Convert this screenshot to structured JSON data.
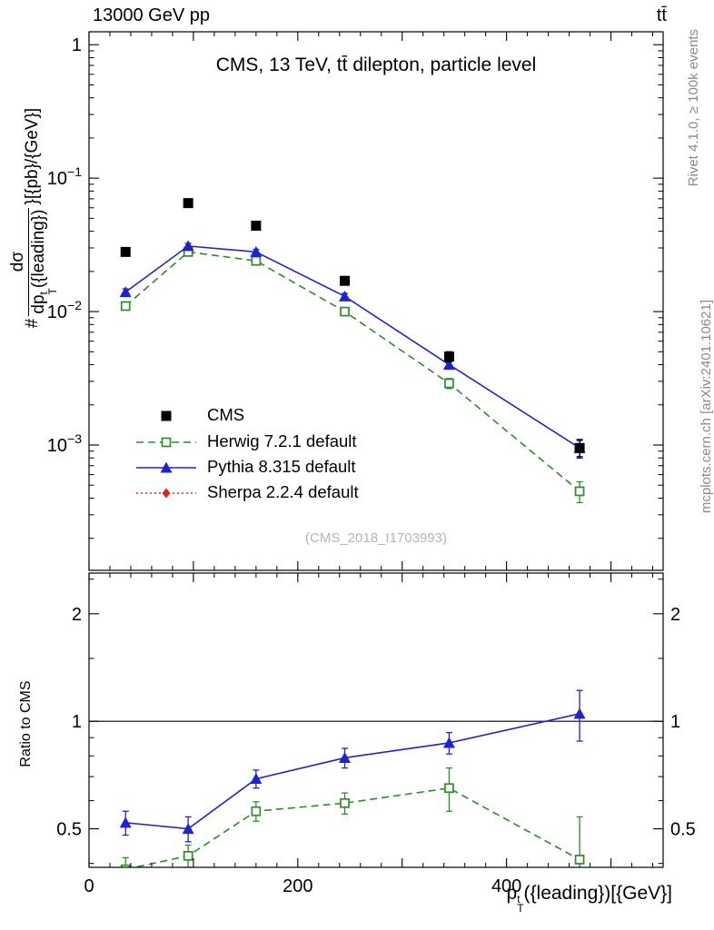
{
  "header": {
    "left_title": "13000 GeV pp",
    "right_title": "tt̄"
  },
  "side_notes": {
    "top": "Rivet 4.1.0, ≥ 100k events",
    "bottom": "mcplots.cern.ch [arXiv:2401.10621]"
  },
  "main_panel": {
    "title": "CMS, 13 TeV, tt̄ dilepton, particle level",
    "watermark": "(CMS_2018_I1703993)",
    "ylabel": {
      "hash": "#",
      "numerator": "dσ",
      "den_base": "dp",
      "den_sub": "T",
      "den_sup": "t",
      "den_rest": "({leading})",
      "suffix": "}[{pb}/{GeV}]"
    }
  },
  "ratio_panel": {
    "ylabel": "Ratio to CMS"
  },
  "xlabel": {
    "base": "p",
    "sub": "T",
    "sup": "t",
    "rest": "({leading})[{GeV}]"
  },
  "legend": {
    "items": [
      {
        "label": "CMS",
        "marker": "filled-square",
        "color": "#000000",
        "line": "none"
      },
      {
        "label": "Herwig 7.2.1 default",
        "marker": "open-square",
        "color": "#2e8b2e",
        "line": "dashed"
      },
      {
        "label": "Pythia 8.315 default",
        "marker": "filled-triangle",
        "color": "#2222cc",
        "line": "solid"
      },
      {
        "label": "Sherpa 2.2.4 default",
        "marker": "filled-diamond",
        "color": "#dd2222",
        "line": "dotted"
      }
    ]
  },
  "chart_data": {
    "type": "line",
    "title": "CMS, 13 TeV, tt dilepton, particle level",
    "xlabel": "pT t leading [GeV]",
    "x": [
      35,
      95,
      160,
      245,
      345,
      470
    ],
    "xlim": [
      0,
      550
    ],
    "x_ticks_major": [
      0,
      100,
      200,
      300,
      400,
      500
    ],
    "x_tick_labels": [
      {
        "value": 0,
        "label": "0"
      },
      {
        "value": 200,
        "label": "200"
      },
      {
        "value": 400,
        "label": "400"
      }
    ],
    "main": {
      "yscale": "log",
      "ylim": [
        0.000115,
        1.25
      ],
      "ylabel": "# dsigma/dpT t leading [pb/GeV]",
      "y_ticks": [
        {
          "value": 1,
          "label": "1"
        },
        {
          "value": 0.1,
          "base": "10",
          "exp": "−1"
        },
        {
          "value": 0.01,
          "base": "10",
          "exp": "−2"
        },
        {
          "value": 0.001,
          "base": "10",
          "exp": "−3"
        }
      ],
      "series": [
        {
          "name": "CMS",
          "color": "#000000",
          "marker": "filled-square",
          "line": "none",
          "values": [
            0.028,
            0.065,
            0.044,
            0.017,
            0.0046,
            0.00095
          ],
          "errors": [
            0.0015,
            0.003,
            0.002,
            0.001,
            0.0004,
            0.00015
          ]
        },
        {
          "name": "Herwig 7.2.1 default",
          "color": "#2e8b2e",
          "marker": "open-square",
          "line": "dashed",
          "values": [
            0.011,
            0.028,
            0.024,
            0.01,
            0.0029,
            0.00045
          ],
          "errors": [
            0.0007,
            0.0014,
            0.0012,
            0.0006,
            0.00025,
            8e-05
          ]
        },
        {
          "name": "Pythia 8.315 default",
          "color": "#2222cc",
          "marker": "filled-triangle",
          "line": "solid",
          "values": [
            0.014,
            0.031,
            0.028,
            0.013,
            0.004,
            0.00095
          ],
          "errors": [
            0.0008,
            0.0015,
            0.0013,
            0.0007,
            0.0003,
            0.00013
          ]
        },
        {
          "name": "Sherpa 2.2.4 default",
          "color": "#dd2222",
          "marker": "filled-diamond",
          "line": "dotted",
          "values": [],
          "errors": []
        }
      ]
    },
    "ratio": {
      "yscale": "log",
      "ylim": [
        0.39,
        2.6
      ],
      "ylabel": "Ratio to CMS",
      "reference_line": 1,
      "y_ticks": [
        {
          "value": 0.5,
          "label": "0.5"
        },
        {
          "value": 1,
          "label": "1"
        },
        {
          "value": 2,
          "label": "2"
        }
      ],
      "y_ticks_minor": [
        0.4,
        0.6,
        0.7,
        0.8,
        0.9,
        1.5,
        2.5
      ],
      "series": [
        {
          "name": "Herwig 7.2.1 default",
          "color": "#2e8b2e",
          "marker": "open-square",
          "line": "dashed",
          "values": [
            0.385,
            0.42,
            0.56,
            0.59,
            0.65,
            0.41
          ],
          "errors": [
            0.03,
            0.03,
            0.035,
            0.04,
            0.09,
            0.13
          ]
        },
        {
          "name": "Pythia 8.315 default",
          "color": "#2222cc",
          "marker": "filled-triangle",
          "line": "solid",
          "values": [
            0.52,
            0.5,
            0.69,
            0.79,
            0.87,
            1.05
          ],
          "errors": [
            0.04,
            0.04,
            0.04,
            0.05,
            0.06,
            0.17
          ]
        }
      ]
    }
  }
}
